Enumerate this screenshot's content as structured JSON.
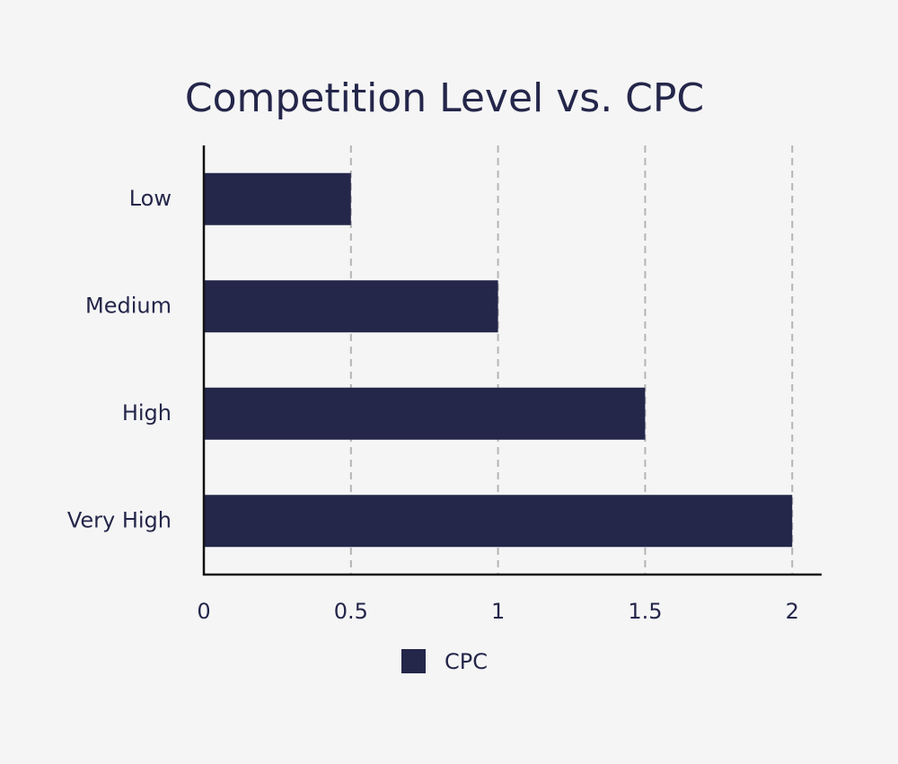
{
  "chart_data": {
    "type": "bar",
    "orientation": "horizontal",
    "title": "Competition Level vs. CPC",
    "categories": [
      "Low",
      "Medium",
      "High",
      "Very High"
    ],
    "series": [
      {
        "name": "CPC",
        "color": "#24264a",
        "values": [
          0.5,
          1,
          1.5,
          2
        ]
      }
    ],
    "xlim": [
      0,
      2.1
    ],
    "xticks": [
      0,
      0.5,
      1,
      1.5,
      2
    ],
    "grid": true,
    "legend": "bottom"
  }
}
